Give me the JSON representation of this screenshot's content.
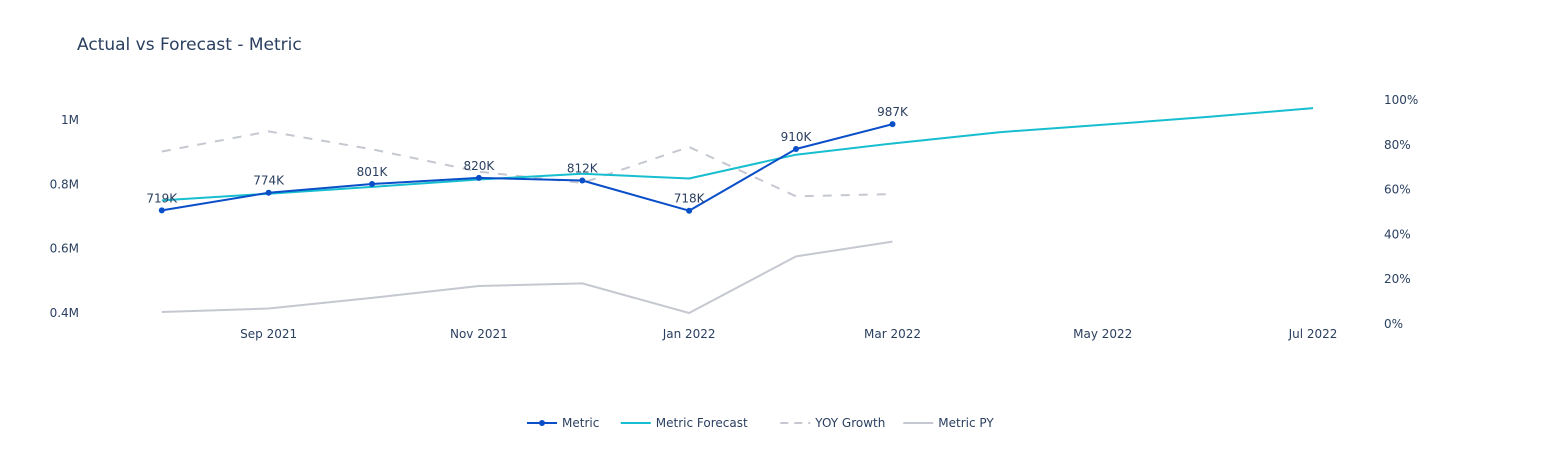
{
  "chart_data": {
    "type": "line",
    "title": "Actual vs Forecast - Metric",
    "x_ticks": [
      {
        "date": "2021-09-01",
        "label": "Sep 2021"
      },
      {
        "date": "2021-11-01",
        "label": "Nov 2021"
      },
      {
        "date": "2022-01-01",
        "label": "Jan 2022"
      },
      {
        "date": "2022-03-01",
        "label": "Mar 2022"
      },
      {
        "date": "2022-05-01",
        "label": "May 2022"
      },
      {
        "date": "2022-07-01",
        "label": "Jul 2022"
      }
    ],
    "xlim": [
      "2021-07-28",
      "2022-07-01"
    ],
    "y_left": {
      "ticks": [
        400000,
        600000,
        800000,
        1000000
      ],
      "tick_labels": [
        "0.4M",
        "0.6M",
        "0.8M",
        "1M"
      ],
      "ylim": [
        400000,
        1000000
      ]
    },
    "y_right": {
      "ticks": [
        0,
        20,
        40,
        60,
        80,
        100
      ],
      "tick_labels": [
        "0%",
        "20%",
        "40%",
        "60%",
        "80%",
        "100%"
      ],
      "ylim": [
        0,
        100
      ]
    },
    "grid": false,
    "legend_position": "bottom-center",
    "series": [
      {
        "name": "Metric",
        "axis": "left",
        "style": "lines+markers",
        "color": "#0a4fc8",
        "x": [
          "2021-08-01",
          "2021-09-01",
          "2021-10-01",
          "2021-11-01",
          "2021-12-01",
          "2022-01-01",
          "2022-02-01",
          "2022-03-01"
        ],
        "y": [
          719000,
          774000,
          801000,
          820000,
          812000,
          718000,
          910000,
          987000
        ],
        "labels": [
          "719K",
          "774K",
          "801K",
          "820K",
          "812K",
          "718K",
          "910K",
          "987K"
        ]
      },
      {
        "name": "Metric Forecast",
        "axis": "left",
        "style": "lines",
        "color": "#17becf",
        "x": [
          "2021-08-01",
          "2021-09-01",
          "2021-10-01",
          "2021-11-01",
          "2021-12-01",
          "2022-01-01",
          "2022-02-01",
          "2022-03-01",
          "2022-04-01",
          "2022-05-01",
          "2022-06-01",
          "2022-07-01"
        ],
        "y": [
          750000,
          771000,
          792000,
          815000,
          833000,
          818000,
          892000,
          927000,
          962000,
          985000,
          1010000,
          1037000
        ]
      },
      {
        "name": "YOY Growth",
        "axis": "right",
        "style": "dash",
        "color": "#c5c8d0",
        "x": [
          "2021-08-01",
          "2021-09-01",
          "2021-10-01",
          "2021-11-01",
          "2021-12-01",
          "2022-01-01",
          "2022-02-01",
          "2022-03-01"
        ],
        "y": [
          77,
          86,
          78,
          68,
          63,
          79,
          57,
          58
        ]
      },
      {
        "name": "Metric PY",
        "axis": "left",
        "style": "lines",
        "color": "#c5c8d0",
        "x": [
          "2021-08-01",
          "2021-09-01",
          "2021-10-01",
          "2021-11-01",
          "2021-12-01",
          "2022-01-01",
          "2022-02-01",
          "2022-03-01"
        ],
        "y": [
          403000,
          414000,
          447000,
          484000,
          492000,
          400000,
          576000,
          622000
        ]
      }
    ]
  }
}
